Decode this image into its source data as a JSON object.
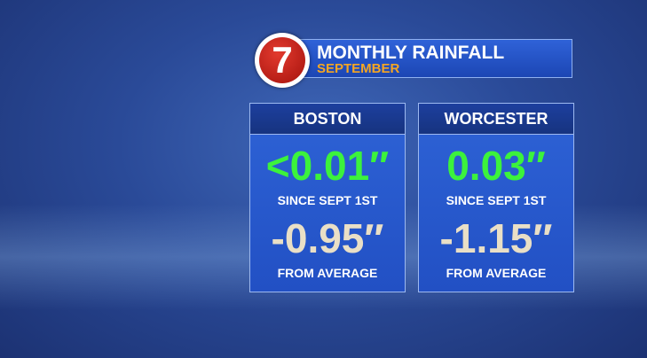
{
  "header": {
    "logo": "7",
    "title": "MONTHLY RAINFALL",
    "subtitle": "SEPTEMBER"
  },
  "panels": [
    {
      "city": "BOSTON",
      "since": "<0.01″",
      "since_label": "SINCE SEPT 1ST",
      "departure": "-0.95″",
      "departure_label": "FROM AVERAGE"
    },
    {
      "city": "WORCESTER",
      "since": "0.03″",
      "since_label": "SINCE SEPT 1ST",
      "departure": "-1.15″",
      "departure_label": "FROM AVERAGE"
    }
  ]
}
